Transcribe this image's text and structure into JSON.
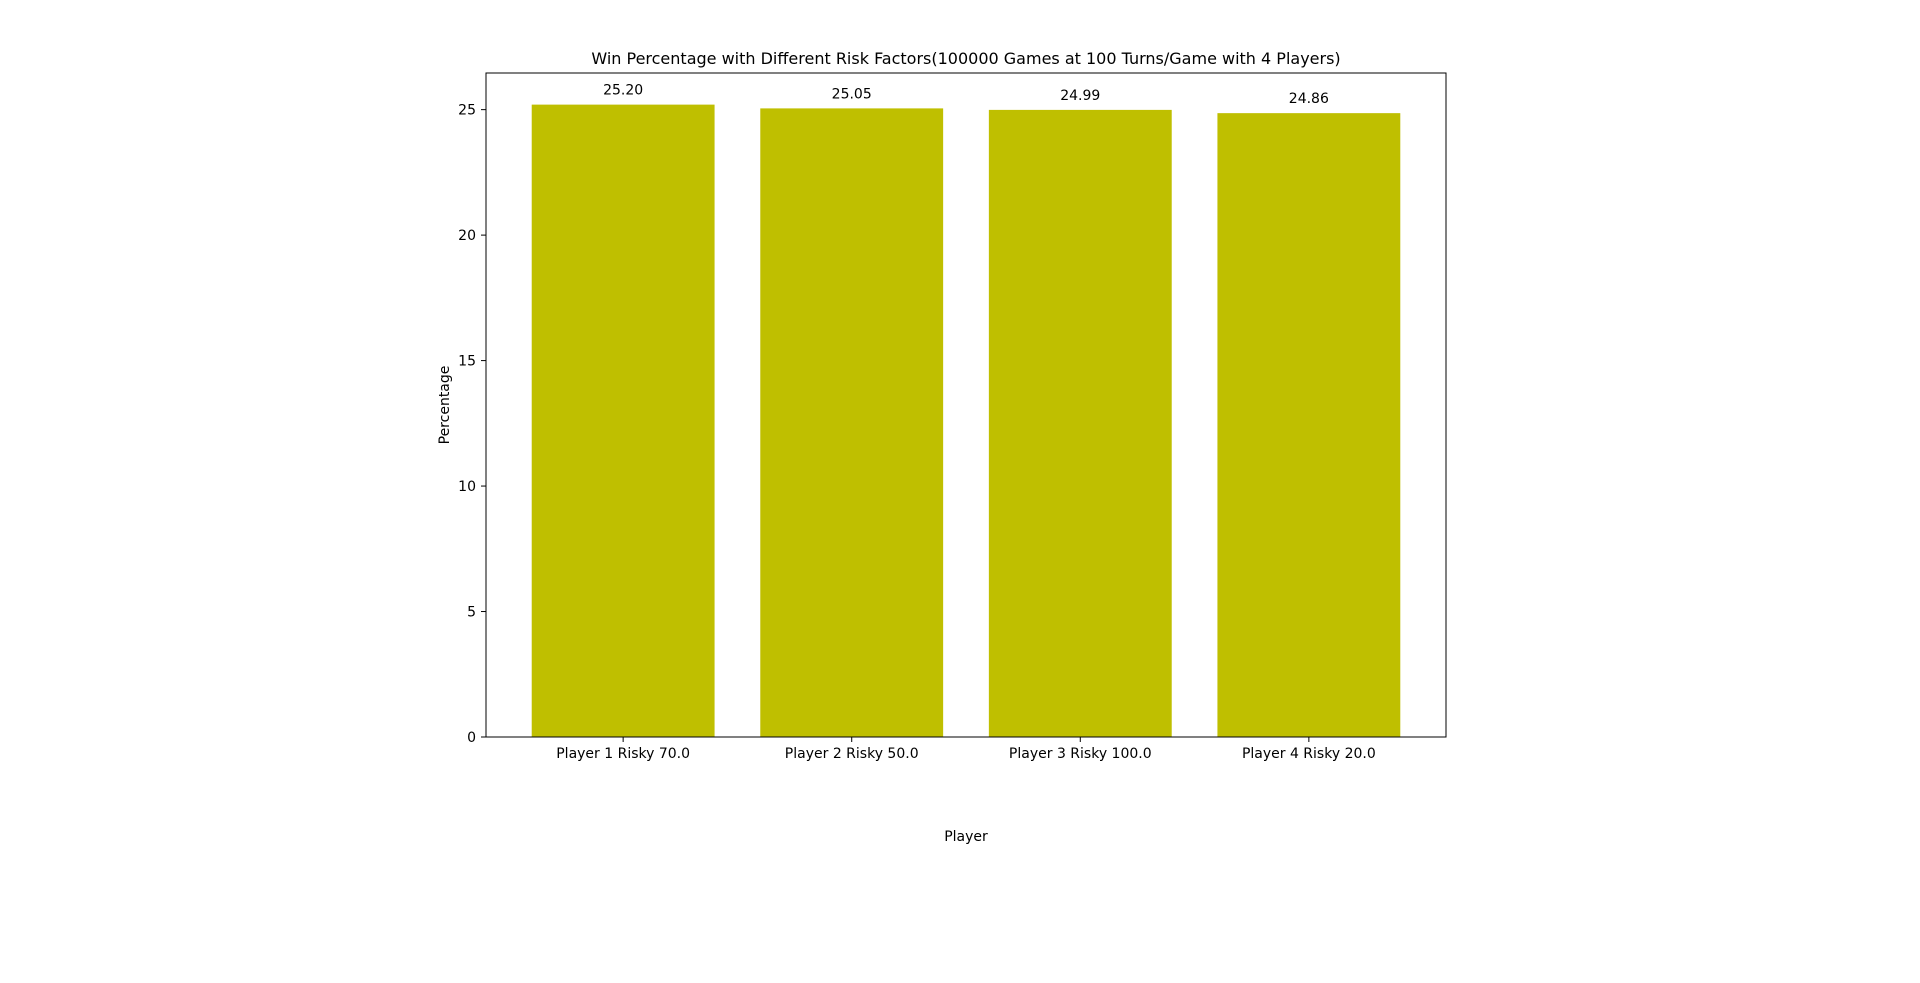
{
  "chart_data": {
    "type": "bar",
    "title": "Win Percentage with Different Risk Factors(100000 Games at 100 Turns/Game with 4 Players)",
    "xlabel": "Player",
    "ylabel": "Percentage",
    "categories": [
      "Player 1 Risky 70.0",
      "Player 2 Risky 50.0",
      "Player 3 Risky 100.0",
      "Player 4 Risky 20.0"
    ],
    "values": [
      25.2,
      25.05,
      24.99,
      24.86
    ],
    "data_labels": [
      "25.20",
      "25.05",
      "24.99",
      "24.86"
    ],
    "yticks": [
      0,
      5,
      10,
      15,
      20,
      25
    ],
    "ylim": [
      0,
      26.46
    ],
    "grid": false,
    "bar_color": "#bfbf00"
  }
}
